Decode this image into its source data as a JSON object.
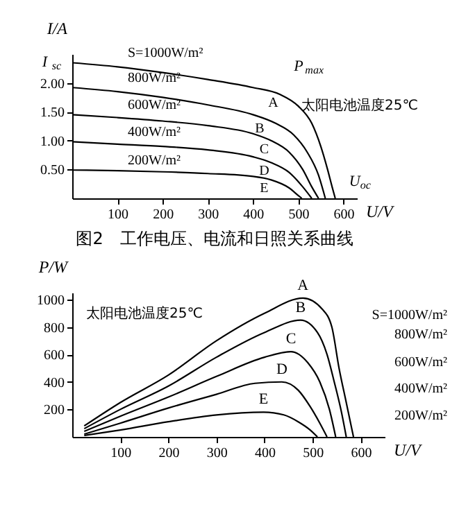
{
  "chart_data": [
    {
      "type": "line",
      "title": "图2　工作电压、电流和日照关系曲线",
      "xlabel": "U/V",
      "ylabel": "I/A",
      "xlim": [
        0,
        630
      ],
      "ylim": [
        0,
        2.5
      ],
      "xticks": [
        100,
        200,
        300,
        400,
        500,
        600
      ],
      "yticks": [
        {
          "value": 0.5,
          "label": "0.50"
        },
        {
          "value": 1,
          "label": "1.00"
        },
        {
          "value": 1.5,
          "label": "1.50"
        },
        {
          "value": 2,
          "label": "2.00"
        }
      ],
      "legend": false,
      "grid": false,
      "marker": "none",
      "line_style": "solid",
      "series": [
        {
          "name": "S=1000W/m²",
          "color": "#000000",
          "x": [
            0,
            100,
            200,
            300,
            400,
            460,
            500,
            530,
            550,
            565,
            575,
            582
          ],
          "values": [
            2.35,
            2.28,
            2.18,
            2.06,
            1.92,
            1.8,
            1.6,
            1.3,
            0.9,
            0.5,
            0.2,
            0
          ]
        },
        {
          "name": "800W/m²",
          "color": "#000000",
          "x": [
            0,
            100,
            200,
            300,
            400,
            450,
            490,
            520,
            545,
            560
          ],
          "values": [
            1.92,
            1.85,
            1.75,
            1.62,
            1.45,
            1.3,
            1.1,
            0.8,
            0.4,
            0
          ]
        },
        {
          "name": "600W/m²",
          "color": "#000000",
          "x": [
            0,
            100,
            200,
            300,
            400,
            440,
            480,
            510,
            530,
            545
          ],
          "values": [
            1.45,
            1.4,
            1.34,
            1.26,
            1.12,
            1.0,
            0.8,
            0.5,
            0.2,
            0
          ]
        },
        {
          "name": "400W/m²",
          "color": "#000000",
          "x": [
            0,
            100,
            200,
            300,
            400,
            440,
            480,
            510,
            530
          ],
          "values": [
            0.98,
            0.94,
            0.9,
            0.84,
            0.72,
            0.62,
            0.45,
            0.2,
            0
          ]
        },
        {
          "name": "200W/m²",
          "color": "#000000",
          "x": [
            0,
            100,
            200,
            300,
            400,
            440,
            480,
            500,
            508
          ],
          "values": [
            0.49,
            0.48,
            0.46,
            0.43,
            0.38,
            0.32,
            0.18,
            0.05,
            0
          ]
        }
      ],
      "annotations": [
        {
          "text": "A",
          "x": 460,
          "y": 1.8
        },
        {
          "text": "B",
          "x": 430,
          "y": 1.36
        },
        {
          "text": "C",
          "x": 440,
          "y": 1.0
        },
        {
          "text": "D",
          "x": 440,
          "y": 0.62
        },
        {
          "text": "E",
          "x": 440,
          "y": 0.32
        },
        {
          "text": "P$_{max}$",
          "x": 460,
          "y": 1.8
        },
        {
          "text": "I$_{sc}$",
          "x": 0,
          "y": 2.35
        },
        {
          "text": "U$_{oc}$",
          "x": 582,
          "y": 0
        },
        "太阳电池温度25℃"
      ]
    },
    {
      "type": "line",
      "xlabel": "U/V",
      "ylabel": "P/W",
      "xlim": [
        0,
        650
      ],
      "ylim": [
        0,
        1050
      ],
      "xticks": [
        100,
        200,
        300,
        400,
        500,
        600
      ],
      "yticks": [
        200,
        400,
        600,
        800,
        1000
      ],
      "legend": false,
      "grid": false,
      "marker": "none",
      "line_style": "solid",
      "series": [
        {
          "name": "S=1000W/m²",
          "color": "#000000",
          "x": [
            25,
            100,
            200,
            300,
            400,
            480,
            520,
            540,
            555,
            570,
            585
          ],
          "values": [
            80,
            250,
            450,
            700,
            900,
            1010,
            930,
            800,
            500,
            250,
            0
          ]
        },
        {
          "name": "800W/m²",
          "color": "#000000",
          "x": [
            25,
            100,
            200,
            300,
            400,
            475,
            510,
            530,
            545,
            560,
            570
          ],
          "values": [
            60,
            200,
            370,
            580,
            760,
            850,
            760,
            600,
            400,
            180,
            0
          ]
        },
        {
          "name": "600W/m²",
          "color": "#000000",
          "x": [
            25,
            100,
            200,
            300,
            400,
            455,
            490,
            515,
            535,
            548
          ],
          "values": [
            40,
            150,
            290,
            440,
            580,
            620,
            540,
            400,
            200,
            0
          ]
        },
        {
          "name": "400W/m²",
          "color": "#000000",
          "x": [
            25,
            100,
            200,
            300,
            380,
            436,
            470,
            495,
            515,
            530
          ],
          "values": [
            20,
            100,
            210,
            310,
            390,
            400,
            340,
            220,
            100,
            0
          ]
        },
        {
          "name": "200W/m²",
          "color": "#000000",
          "x": [
            25,
            100,
            200,
            300,
            398,
            440,
            470,
            495,
            510
          ],
          "values": [
            10,
            50,
            110,
            160,
            180,
            160,
            110,
            50,
            0
          ]
        }
      ],
      "annotations": [
        {
          "text": "A",
          "x": 480,
          "y": 1010
        },
        {
          "text": "B",
          "x": 475,
          "y": 850
        },
        {
          "text": "C",
          "x": 455,
          "y": 620
        },
        {
          "text": "D",
          "x": 436,
          "y": 400
        },
        {
          "text": "E",
          "x": 398,
          "y": 180
        },
        "太阳电池温度25℃"
      ]
    }
  ]
}
